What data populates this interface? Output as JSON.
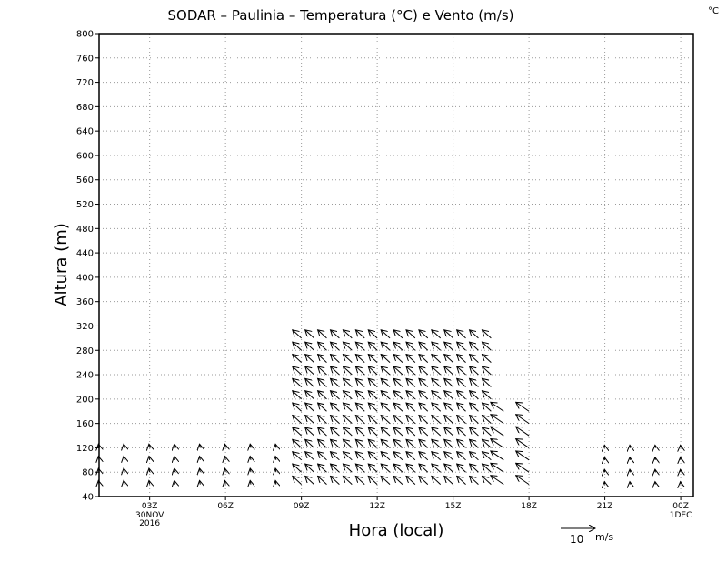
{
  "chart_data": {
    "type": "vector-field",
    "title": "SODAR – Paulinia – Temperatura (°C) e Vento (m/s)",
    "corner_unit": "°C",
    "xlabel": "Hora (local)",
    "ylabel": "Altura (m)",
    "ylim": [
      40,
      800
    ],
    "yticks": [
      40,
      80,
      120,
      160,
      200,
      240,
      280,
      320,
      360,
      400,
      440,
      480,
      520,
      560,
      600,
      640,
      680,
      720,
      760,
      800
    ],
    "xlim": [
      0,
      23.5
    ],
    "xticks": [
      {
        "h": 2,
        "label": "03Z"
      },
      {
        "h": 5,
        "label": "06Z"
      },
      {
        "h": 8,
        "label": "09Z"
      },
      {
        "h": 11,
        "label": "12Z"
      },
      {
        "h": 14,
        "label": "15Z"
      },
      {
        "h": 17,
        "label": "18Z"
      },
      {
        "h": 20,
        "label": "21Z"
      },
      {
        "h": 23,
        "label": "00Z"
      }
    ],
    "date_labels": [
      {
        "h": 2,
        "lines": [
          "30NOV",
          "2016"
        ]
      },
      {
        "h": 23,
        "lines": [
          "1DEC"
        ]
      }
    ],
    "grid": true,
    "legend": {
      "reference_speed": 10,
      "reference_label": "10",
      "unit_label": "m/s"
    },
    "wind": {
      "times": [
        0,
        1,
        2,
        3,
        4,
        5,
        6,
        7,
        8,
        8.5,
        9,
        9.5,
        10,
        10.5,
        11,
        11.5,
        12,
        12.5,
        13,
        13.5,
        14,
        14.5,
        15,
        15.5,
        16,
        17,
        18,
        19,
        20,
        21,
        22,
        23
      ],
      "levels": [
        60,
        80,
        100,
        120,
        140,
        160,
        180,
        200,
        220,
        240,
        260,
        280,
        300,
        320
      ],
      "segments": [
        {
          "t0": 0,
          "t1": 7.5,
          "top": 120,
          "u": -0.2,
          "v": 1.1
        },
        {
          "t0": 8,
          "t1": 15.5,
          "top": 300,
          "u": -2.6,
          "v": 2.4
        },
        {
          "t0": 16,
          "t1": 17.5,
          "top": 180,
          "u": -3.8,
          "v": 2.6
        },
        {
          "t0": 19.5,
          "t1": 23.5,
          "top": 120,
          "u": -0.1,
          "v": 0.8
        }
      ]
    }
  }
}
